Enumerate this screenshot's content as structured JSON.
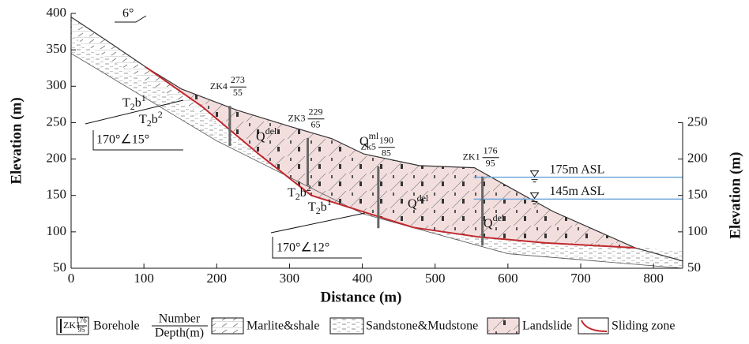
{
  "chart_data": {
    "type": "cross-section",
    "xlabel": "Distance (m)",
    "ylabel": "Elevation (m)",
    "y2label": "Elevation (m)",
    "xlim": [
      0,
      840
    ],
    "xticks": [
      0,
      100,
      200,
      300,
      400,
      500,
      600,
      700,
      800
    ],
    "ylim": [
      50,
      400
    ],
    "yticks": [
      50,
      100,
      150,
      200,
      250,
      300,
      350,
      400
    ],
    "y2lim": [
      50,
      400
    ],
    "y2ticks": [
      50,
      100,
      150,
      200,
      250
    ],
    "ground_surface": {
      "x": [
        0,
        50,
        103,
        152,
        228,
        300,
        358,
        402,
        478,
        554,
        597,
        662,
        775,
        840
      ],
      "values": [
        395,
        362,
        326,
        296,
        267,
        245,
        228,
        207,
        191,
        188,
        164,
        128,
        78,
        60
      ],
      "color": "#333333"
    },
    "rock_base": {
      "x": [
        0,
        200,
        400,
        600,
        840
      ],
      "values": [
        345,
        225,
        125,
        70,
        50
      ],
      "color": "#555555"
    },
    "sliding_zone": {
      "x": [
        103,
        180,
        260,
        330,
        400,
        470,
        560,
        650,
        775
      ],
      "values": [
        326,
        272,
        205,
        150,
        128,
        106,
        93,
        85,
        78
      ],
      "color": "#c0282d"
    },
    "boreholes": [
      {
        "name": "ZK4",
        "x": 218,
        "elevation": 273,
        "depth": 55
      },
      {
        "name": "ZK3",
        "x": 325,
        "elevation": 229,
        "depth": 65
      },
      {
        "name": "Zk5",
        "x": 422,
        "elevation": 190,
        "depth": 85
      },
      {
        "name": "ZK1",
        "x": 565,
        "elevation": 176,
        "depth": 95
      }
    ],
    "borehole_color": "#666666",
    "water_levels": [
      {
        "label": "175m ASL",
        "value": 175,
        "x_start": 553
      },
      {
        "label": "145m ASL",
        "value": 145,
        "x_start": 553
      }
    ],
    "water_color": "#6fa8dc",
    "strata_labels": [
      {
        "base": "T",
        "sub": "2",
        "mid": "b",
        "sup": "1"
      },
      {
        "base": "T",
        "sub": "2",
        "mid": "b",
        "sup": "2"
      },
      {
        "base": "T",
        "sub": "2",
        "mid": "b",
        "sup": "2"
      },
      {
        "base": "T",
        "sub": "2",
        "mid": "b",
        "sup": "1"
      }
    ],
    "deposit_labels": [
      {
        "base": "Q",
        "sup": "del"
      },
      {
        "base": "Q",
        "sup": "ml"
      },
      {
        "base": "Q",
        "sup": "del"
      },
      {
        "base": "Q",
        "sup": "del"
      }
    ],
    "dips": [
      "170°∠15°",
      "170°∠12°"
    ],
    "slope_angle": "6°",
    "legend": {
      "borehole_icon": {
        "name": "ZK1",
        "number": 176,
        "depth": 95
      },
      "borehole": "Borehole",
      "number": "Number",
      "depth": "Depth(m)",
      "marlite": "Marlite&shale",
      "sandstone": "Sandstone&Mudstone",
      "landslide": "Landslide",
      "sliding_zone": "Sliding zone"
    }
  }
}
